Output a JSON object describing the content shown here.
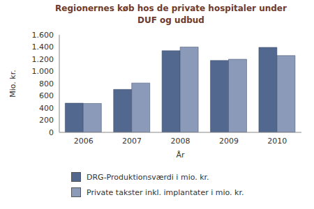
{
  "chart_data": {
    "type": "bar",
    "title": "Regionernes køb hos de private hospitaler under DUF og udbud",
    "x_label": "År",
    "y_label": "Mio. kr.",
    "categories": [
      "2006",
      "2007",
      "2008",
      "2009",
      "2010"
    ],
    "series": [
      {
        "name": "DRG-Produktionsværdi i mio. kr.",
        "color": "#52688f",
        "values": [
          480,
          705,
          1340,
          1180,
          1395
        ]
      },
      {
        "name": "Private takster inkl. implantater i mio. kr.",
        "color": "#8a9ab8",
        "values": [
          475,
          810,
          1400,
          1200,
          1260
        ]
      }
    ],
    "ylim": [
      0,
      1600
    ],
    "yticks": [
      0,
      200,
      400,
      600,
      800,
      {
        "value": 1000,
        "label": "1.000"
      },
      {
        "value": 1200,
        "label": "1.200"
      },
      {
        "value": 1400,
        "label": "1.400"
      },
      {
        "value": 1600,
        "label": "1.600"
      }
    ],
    "grid": false,
    "legend": "bottom"
  }
}
